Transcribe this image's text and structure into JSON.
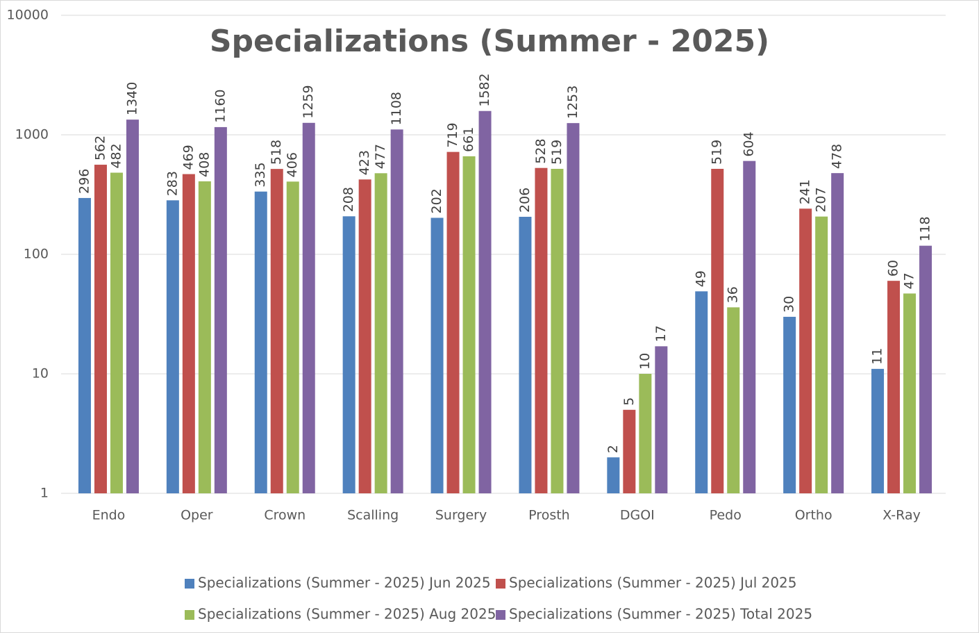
{
  "chart_data": {
    "type": "bar",
    "title": "Specializations (Summer - 2025)",
    "categories": [
      "Endo",
      "Oper",
      "Crown",
      "Scalling",
      "Surgery",
      "Prosth",
      "DGOI",
      "Pedo",
      "Ortho",
      "X-Ray"
    ],
    "series": [
      {
        "name": "Specializations (Summer - 2025) Jun 2025",
        "color": "#4f81bd",
        "values": [
          296,
          283,
          335,
          208,
          202,
          206,
          2,
          49,
          30,
          11
        ]
      },
      {
        "name": "Specializations (Summer - 2025) Jul 2025",
        "color": "#c0504d",
        "values": [
          562,
          469,
          518,
          423,
          719,
          528,
          5,
          519,
          241,
          60
        ]
      },
      {
        "name": "Specializations (Summer - 2025) Aug 2025",
        "color": "#9bbb59",
        "values": [
          482,
          408,
          406,
          477,
          661,
          519,
          10,
          36,
          207,
          47
        ]
      },
      {
        "name": "Specializations (Summer - 2025) Total 2025",
        "color": "#8064a2",
        "values": [
          1340,
          1160,
          1259,
          1108,
          1582,
          1253,
          17,
          604,
          478,
          118
        ]
      }
    ],
    "ylim": [
      1,
      10000
    ],
    "yticks": [
      1,
      10,
      100,
      1000,
      10000
    ],
    "log_scale": true,
    "grid": true,
    "legend": "bottom"
  }
}
